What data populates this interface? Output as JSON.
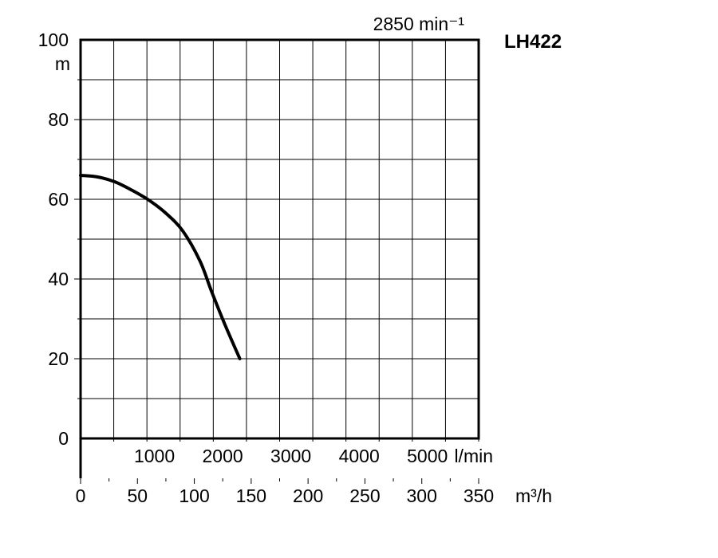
{
  "chart_data": {
    "type": "line",
    "model": "LH422",
    "speed_label": "2850 min⁻¹",
    "ylabel": "m",
    "ylim": [
      0,
      100
    ],
    "y_ticks": [
      "0",
      "20",
      "40",
      "60",
      "80",
      "100"
    ],
    "x_lmin_ticks": [
      "1000",
      "2000",
      "3000",
      "4000",
      "5000"
    ],
    "x_lmin_unit": "l/min",
    "x_m3h_ticks": [
      "0",
      "50",
      "100",
      "150",
      "200",
      "250",
      "300",
      "350"
    ],
    "x_m3h_unit": "m³/h",
    "xlim_m3h": [
      0,
      350
    ],
    "grid": true,
    "series": [
      {
        "x": [
          0,
          15,
          30,
          45,
          60,
          75,
          90,
          105,
          115,
          127,
          140
        ],
        "y": [
          66,
          65.6,
          64.4,
          62.3,
          59.8,
          56.5,
          52,
          44.5,
          37,
          28.5,
          20
        ]
      }
    ]
  }
}
